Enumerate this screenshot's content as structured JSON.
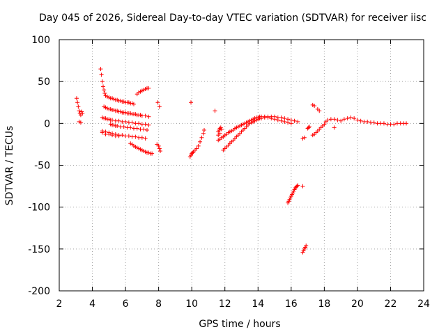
{
  "chart_data": {
    "type": "scatter",
    "title": "Day 045 of 2026, Sidereal Day-to-day VTEC variation (SDTVAR) for receiver iisc",
    "xlabel": "GPS time / hours",
    "ylabel": "SDTVAR / TECUs",
    "xlim": [
      2,
      24
    ],
    "ylim": [
      -200,
      100
    ],
    "xticks": [
      2,
      4,
      6,
      8,
      10,
      12,
      14,
      16,
      18,
      20,
      22,
      24
    ],
    "yticks": [
      -200,
      -150,
      -100,
      -50,
      0,
      50,
      100
    ],
    "grid": true,
    "marker": "+",
    "color": "#ff0000",
    "series": [
      {
        "name": "SDTVAR",
        "x": [
          3.05,
          3.1,
          3.15,
          3.2,
          3.25,
          3.3,
          3.35,
          3.4,
          3.2,
          3.3,
          4.5,
          4.55,
          4.6,
          4.65,
          4.7,
          4.75,
          4.8,
          4.9,
          5.0,
          5.1,
          5.2,
          5.3,
          5.4,
          5.5,
          5.6,
          5.7,
          5.8,
          5.9,
          6.0,
          6.1,
          6.2,
          6.3,
          6.4,
          6.5,
          4.7,
          4.8,
          4.9,
          5.0,
          5.1,
          5.2,
          5.3,
          5.4,
          5.5,
          5.6,
          5.7,
          5.8,
          5.9,
          6.0,
          6.1,
          6.2,
          6.3,
          6.4,
          6.5,
          6.6,
          6.7,
          6.8,
          6.9,
          7.0,
          7.2,
          7.4,
          4.6,
          4.7,
          4.8,
          4.9,
          5.0,
          5.1,
          5.2,
          5.4,
          5.6,
          5.8,
          6.0,
          6.2,
          6.4,
          6.6,
          6.8,
          7.0,
          7.2,
          7.4,
          5.1,
          5.2,
          5.3,
          5.4,
          5.5,
          5.7,
          5.9,
          6.1,
          6.3,
          6.5,
          6.7,
          6.9,
          7.1,
          7.3,
          4.6,
          4.8,
          5.0,
          5.2,
          5.4,
          5.6,
          5.8,
          6.0,
          6.2,
          6.4,
          6.6,
          6.8,
          7.0,
          7.2,
          6.3,
          6.4,
          6.5,
          6.6,
          6.7,
          6.8,
          6.9,
          7.0,
          7.1,
          7.2,
          7.3,
          7.4,
          7.5,
          7.6,
          4.6,
          4.8,
          5.0,
          5.2,
          5.4,
          5.6,
          6.7,
          6.8,
          6.9,
          7.0,
          7.1,
          7.2,
          7.3,
          7.4,
          7.9,
          8.0,
          8.05,
          8.1,
          7.95,
          8.05,
          9.9,
          9.95,
          10.0,
          10.05,
          10.1,
          10.2,
          10.3,
          10.4,
          10.5,
          10.6,
          10.7,
          10.75,
          9.95,
          11.4,
          11.6,
          11.65,
          11.7,
          11.75,
          11.8,
          11.6,
          11.7,
          11.6,
          11.7,
          11.8,
          11.9,
          12.0,
          12.1,
          12.2,
          12.3,
          12.4,
          12.5,
          12.6,
          12.7,
          12.8,
          12.9,
          13.0,
          13.1,
          13.2,
          13.3,
          13.4,
          13.5,
          13.6,
          13.7,
          13.8,
          13.9,
          14.0,
          14.1,
          14.2,
          14.4,
          14.6,
          14.8,
          15.0,
          15.2,
          15.4,
          15.6,
          15.8,
          16.0,
          16.2,
          16.4,
          11.9,
          12.0,
          12.1,
          12.2,
          12.3,
          12.4,
          12.5,
          12.6,
          12.7,
          12.8,
          12.9,
          13.0,
          13.1,
          13.2,
          13.3,
          13.4,
          13.5,
          13.6,
          13.7,
          13.8,
          13.9,
          14.0,
          14.1,
          14.2,
          14.4,
          14.6,
          14.8,
          15.0,
          15.2,
          15.4,
          15.6,
          15.8,
          16.0,
          15.8,
          15.85,
          15.9,
          15.95,
          16.0,
          16.05,
          16.1,
          16.15,
          16.2,
          16.25,
          16.3,
          16.35,
          16.4,
          16.7,
          16.7,
          16.75,
          16.8,
          16.85,
          16.9,
          16.7,
          16.8,
          17.0,
          17.05,
          17.1,
          17.3,
          17.4,
          17.5,
          17.6,
          17.7,
          17.8,
          17.9,
          18.0,
          18.1,
          18.2,
          18.4,
          18.6,
          18.8,
          19.0,
          19.2,
          19.4,
          19.6,
          19.8,
          20.0,
          20.2,
          20.4,
          20.6,
          20.8,
          21.0,
          21.2,
          21.4,
          21.6,
          21.8,
          22.0,
          22.2,
          22.4,
          22.6,
          22.8,
          22.95,
          17.3,
          17.4,
          17.6,
          17.7,
          18.6
        ],
        "y": [
          30,
          25,
          20,
          15,
          12,
          10,
          14,
          12,
          2,
          1,
          65,
          58,
          50,
          44,
          40,
          36,
          33,
          32,
          31,
          30,
          30,
          29,
          28,
          28,
          27,
          27,
          26,
          26,
          25,
          25,
          25,
          24,
          24,
          23,
          20,
          19,
          18,
          17,
          17,
          16,
          16,
          15,
          15,
          14,
          14,
          13,
          13,
          13,
          12,
          12,
          12,
          11,
          11,
          11,
          10,
          10,
          10,
          9,
          9,
          8,
          7,
          6,
          6,
          5,
          5,
          4,
          4,
          3,
          3,
          2,
          2,
          1,
          1,
          0,
          0,
          -1,
          -1,
          -2,
          -1,
          -2,
          -2,
          -3,
          -3,
          -4,
          -4,
          -5,
          -5,
          -6,
          -6,
          -7,
          -7,
          -8,
          -9,
          -10,
          -11,
          -12,
          -13,
          -14,
          -14,
          -15,
          -15,
          -16,
          -16,
          -17,
          -17,
          -18,
          -24,
          -25,
          -27,
          -28,
          -29,
          -30,
          -31,
          -32,
          -33,
          -34,
          -35,
          -35,
          -36,
          -36,
          -11,
          -13,
          -13,
          -14,
          -15,
          -15,
          35,
          37,
          38,
          39,
          40,
          41,
          42,
          42,
          -25,
          -27,
          -30,
          -33,
          25,
          20,
          -40,
          -38,
          -36,
          -35,
          -34,
          -32,
          -30,
          -27,
          -22,
          -17,
          -12,
          -8,
          25,
          15,
          -10,
          -8,
          -6,
          -5,
          -7,
          -14,
          -12,
          -20,
          -19,
          -17,
          -16,
          -14,
          -13,
          -11,
          -10,
          -9,
          -8,
          -6,
          -5,
          -4,
          -3,
          -2,
          -1,
          0,
          1,
          2,
          3,
          4,
          5,
          6,
          7,
          7,
          8,
          8,
          8,
          8,
          8,
          8,
          7,
          7,
          6,
          5,
          4,
          3,
          2,
          -32,
          -30,
          -28,
          -26,
          -24,
          -22,
          -20,
          -18,
          -16,
          -14,
          -12,
          -10,
          -8,
          -6,
          -4,
          -2,
          0,
          1,
          2,
          3,
          4,
          5,
          6,
          6,
          7,
          7,
          6,
          5,
          4,
          3,
          2,
          1,
          0,
          -95,
          -93,
          -91,
          -89,
          -87,
          -85,
          -83,
          -81,
          -79,
          -77,
          -76,
          -75,
          -74,
          -75,
          -154,
          -152,
          -150,
          -148,
          -146,
          -18,
          -17,
          -6,
          -5,
          -4,
          -14,
          -13,
          -11,
          -9,
          -7,
          -5,
          -3,
          -1,
          2,
          4,
          5,
          5,
          4,
          3,
          5,
          6,
          7,
          6,
          4,
          3,
          2,
          2,
          1,
          1,
          0,
          0,
          0,
          -1,
          -1,
          -1,
          0,
          0,
          0,
          0,
          22,
          21,
          17,
          15,
          -5
        ]
      }
    ]
  }
}
